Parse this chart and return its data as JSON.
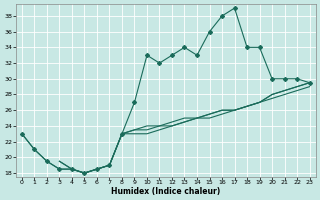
{
  "xlabel": "Humidex (Indice chaleur)",
  "ylabel": "",
  "xlim": [
    -0.5,
    23.5
  ],
  "ylim": [
    17.5,
    39.5
  ],
  "yticks": [
    18,
    20,
    22,
    24,
    26,
    28,
    30,
    32,
    34,
    36,
    38
  ],
  "xticks": [
    0,
    1,
    2,
    3,
    4,
    5,
    6,
    7,
    8,
    9,
    10,
    11,
    12,
    13,
    14,
    15,
    16,
    17,
    18,
    19,
    20,
    21,
    22,
    23
  ],
  "bg_color": "#c8e8e4",
  "line_color": "#1a6b5a",
  "series1_x": [
    0,
    1,
    2,
    3,
    4,
    5,
    6,
    7,
    8,
    9,
    10,
    11,
    12,
    13,
    14,
    15,
    16,
    17,
    18,
    19,
    20,
    21,
    22,
    23
  ],
  "series1_y": [
    23,
    21,
    19.5,
    18.5,
    18.5,
    18,
    18.5,
    19,
    23,
    27,
    33,
    32,
    33,
    34,
    33,
    36,
    38,
    39,
    34,
    34,
    30,
    30,
    30,
    29.5
  ],
  "series2_x": [
    0,
    1,
    2,
    3,
    4,
    5,
    6,
    7,
    8,
    9,
    10,
    11,
    12,
    13,
    14,
    15,
    16,
    17,
    18,
    19,
    20,
    21,
    22,
    23
  ],
  "series2_y": [
    23,
    21,
    19.5,
    18.5,
    18.5,
    18,
    18.5,
    19,
    23,
    23.5,
    24,
    24,
    24.5,
    25,
    25,
    25.5,
    26,
    26,
    26.5,
    27,
    28,
    28.5,
    29,
    29.5
  ],
  "series3_x": [
    3,
    4,
    5,
    6,
    7,
    8,
    9,
    10,
    11,
    12,
    13,
    14,
    15,
    16,
    17,
    18,
    19,
    20,
    21,
    22,
    23
  ],
  "series3_y": [
    19.5,
    18.5,
    18,
    18.5,
    19,
    23,
    23,
    23,
    23.5,
    24,
    24.5,
    25,
    25.5,
    26,
    26,
    26.5,
    27,
    28,
    28.5,
    29,
    29.5
  ],
  "series4_x": [
    3,
    4,
    5,
    6,
    7,
    8,
    9,
    10,
    11,
    12,
    13,
    14,
    15,
    16,
    17,
    18,
    19,
    20,
    21,
    22,
    23
  ],
  "series4_y": [
    19.5,
    18.5,
    18,
    18.5,
    19,
    23,
    23.5,
    23.5,
    24,
    24,
    24.5,
    25,
    25,
    25.5,
    26,
    26.5,
    27,
    27.5,
    28,
    28.5,
    29
  ]
}
